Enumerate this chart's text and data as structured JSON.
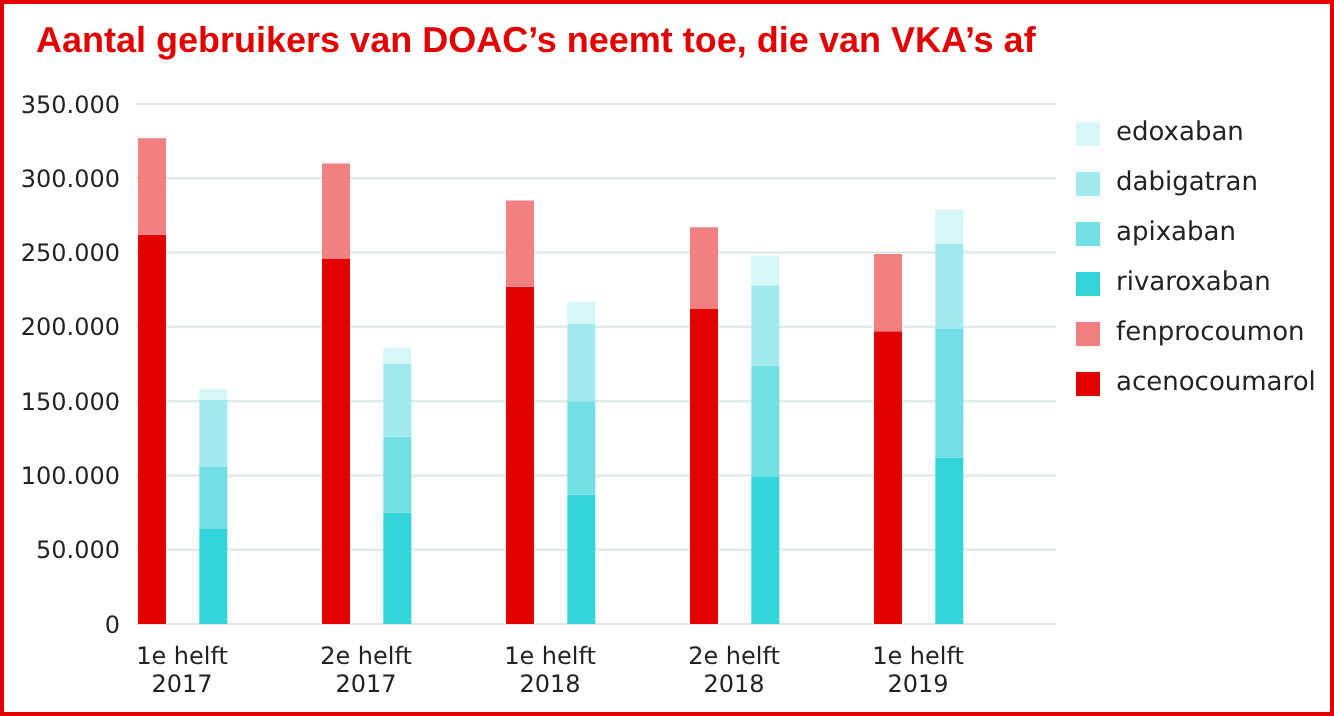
{
  "chart_data": {
    "type": "bar",
    "title": "Aantal gebruikers van DOAC’s neemt toe, die van VKA’s af",
    "categories": [
      null,
      "1e helft 2017",
      null,
      null,
      null,
      null,
      null,
      "2e helft 2017",
      null,
      null,
      null,
      null,
      null,
      "1e helft 2018",
      null,
      null,
      null,
      null,
      null,
      "2e helft 2018",
      null,
      null,
      null,
      null,
      null,
      "1e helft 2019",
      null,
      null,
      null,
      null
    ],
    "stacked": true,
    "series": [
      {
        "name": "acenocoumarol",
        "color": "#e30000",
        "values": [
          262000,
          null,
          null,
          null,
          null,
          null,
          246000,
          null,
          null,
          null,
          null,
          null,
          227000,
          null,
          null,
          null,
          null,
          null,
          212000,
          null,
          null,
          null,
          null,
          null,
          197000,
          null,
          null,
          null,
          null,
          null
        ]
      },
      {
        "name": "fenprocoumon",
        "color": "#f28080",
        "values": [
          65000,
          null,
          null,
          null,
          null,
          null,
          64000,
          null,
          null,
          null,
          null,
          null,
          58000,
          null,
          null,
          null,
          null,
          null,
          55000,
          null,
          null,
          null,
          null,
          null,
          52000,
          null,
          null,
          null,
          null,
          null
        ]
      },
      {
        "name": "rivaroxaban",
        "color": "#33d5db",
        "values": [
          null,
          null,
          64000,
          null,
          null,
          null,
          null,
          null,
          75000,
          null,
          null,
          null,
          null,
          null,
          87000,
          null,
          null,
          null,
          null,
          null,
          99000,
          null,
          null,
          null,
          null,
          null,
          112000,
          null,
          null,
          null
        ]
      },
      {
        "name": "apixaban",
        "color": "#70e0e4",
        "values": [
          null,
          null,
          42000,
          null,
          null,
          null,
          null,
          null,
          51000,
          null,
          null,
          null,
          null,
          null,
          63000,
          null,
          null,
          null,
          null,
          null,
          75000,
          null,
          null,
          null,
          null,
          null,
          87000,
          null,
          null,
          null
        ]
      },
      {
        "name": "dabigatran",
        "color": "#a0eaed",
        "values": [
          null,
          null,
          45000,
          null,
          null,
          null,
          null,
          null,
          49000,
          null,
          null,
          null,
          null,
          null,
          52000,
          null,
          null,
          null,
          null,
          null,
          54000,
          null,
          null,
          null,
          null,
          null,
          57000,
          null,
          null,
          null
        ]
      },
      {
        "name": "edoxaban",
        "color": "#d6f6f8",
        "values": [
          null,
          null,
          7000,
          null,
          null,
          null,
          null,
          null,
          11000,
          null,
          null,
          null,
          null,
          null,
          15000,
          null,
          null,
          null,
          null,
          null,
          20000,
          null,
          null,
          null,
          null,
          null,
          23000,
          null,
          null,
          null
        ]
      }
    ],
    "ylim": [
      0,
      350000
    ],
    "yticks": [
      {
        "value": 0,
        "label": "0"
      },
      {
        "value": 50000,
        "label": "50.000"
      },
      {
        "value": 100000,
        "label": "100.000"
      },
      {
        "value": 150000,
        "label": "150.000"
      },
      {
        "value": 200000,
        "label": "200.000"
      },
      {
        "value": 250000,
        "label": "250.000"
      },
      {
        "value": 300000,
        "label": "300.000"
      },
      {
        "value": 350000,
        "label": "350.000"
      }
    ],
    "grid": "y",
    "legend": "right"
  }
}
